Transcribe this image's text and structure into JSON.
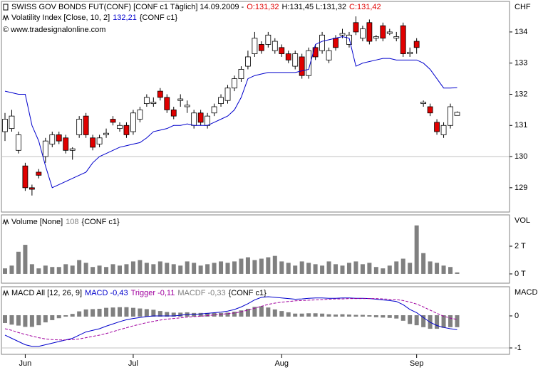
{
  "chart_data": [
    {
      "type": "candlestick",
      "header": [
        [
          {
            "text": "SWISS GOV BONDS FUT(CONF) [CONF c1  Täglich] 14.09.2009 -",
            "color": "#000000"
          },
          {
            "text": "O:131,32",
            "color": "#e00000"
          },
          {
            "text": "H:131,45 L:131,32",
            "color": "#000000"
          },
          {
            "text": "C:131,42",
            "color": "#e00000"
          }
        ],
        [
          {
            "text": "Volatility Index [Close, 10, 2]",
            "color": "#000000"
          },
          {
            "text": "132,21",
            "color": "#0000cc"
          },
          {
            "text": "{CONF c1}",
            "color": "#000000"
          }
        ],
        [
          {
            "text": "© www.tradesignalonline.com",
            "color": "#000000"
          }
        ]
      ],
      "axis_label": "CHF",
      "ylim": [
        128.22,
        134.98
      ],
      "yticks": [
        129,
        130,
        131,
        132,
        133,
        134
      ],
      "hlines": [
        130
      ],
      "up_color": "#ffffff",
      "down_color": "#e00000",
      "open": [
        130.8,
        130.9,
        130.2,
        129.7,
        129.0,
        129.5,
        130.0,
        130.4,
        130.7,
        130.6,
        130.2,
        130.7,
        131.3,
        130.6,
        130.4,
        130.7,
        131.2,
        130.9,
        131.0,
        130.8,
        131.2,
        131.7,
        131.7,
        132.1,
        131.9,
        131.5,
        131.8,
        131.6,
        131.0,
        131.4,
        131.0,
        131.4,
        131.7,
        131.8,
        132.2,
        132.5,
        132.9,
        133.3,
        133.6,
        133.6,
        133.4,
        133.5,
        133.3,
        132.9,
        133.2,
        132.6,
        133.5,
        133.4,
        133.1,
        133.8,
        133.9,
        133.6,
        134.3,
        133.8,
        134.3,
        133.8,
        134.2,
        133.95,
        133.8,
        134.2,
        133.3,
        133.7,
        131.7,
        131.6,
        131.1,
        130.7,
        131.0,
        131.32
      ],
      "close": [
        131.2,
        131.3,
        130.7,
        129.0,
        128.95,
        129.4,
        130.5,
        130.7,
        130.5,
        130.2,
        130.25,
        131.2,
        130.7,
        130.3,
        130.6,
        130.75,
        131.1,
        131.0,
        130.7,
        131.4,
        131.5,
        131.9,
        131.75,
        131.9,
        131.5,
        131.3,
        131.85,
        131.65,
        131.4,
        131.1,
        131.3,
        131.6,
        131.9,
        132.2,
        132.5,
        132.8,
        133.2,
        133.8,
        133.4,
        133.9,
        133.7,
        133.3,
        133.1,
        133.3,
        132.6,
        133.4,
        133.2,
        133.9,
        133.4,
        133.5,
        133.95,
        133.9,
        134.0,
        134.1,
        133.7,
        133.85,
        133.8,
        134.0,
        133.85,
        133.3,
        133.35,
        133.5,
        131.75,
        131.4,
        130.8,
        131.0,
        131.6,
        131.42
      ],
      "high": [
        131.4,
        131.5,
        130.8,
        129.8,
        129.1,
        129.6,
        130.6,
        130.8,
        130.8,
        130.7,
        130.3,
        131.3,
        131.4,
        130.7,
        130.7,
        130.9,
        131.3,
        131.1,
        131.1,
        131.5,
        131.6,
        132.0,
        131.9,
        132.2,
        132.0,
        131.6,
        132.0,
        131.8,
        131.5,
        131.5,
        131.4,
        131.7,
        132.0,
        132.3,
        132.6,
        132.9,
        133.4,
        134.0,
        133.7,
        134.0,
        133.8,
        133.6,
        133.4,
        133.4,
        133.3,
        133.5,
        133.6,
        134.0,
        133.5,
        133.9,
        134.1,
        134.0,
        134.5,
        134.2,
        134.4,
        133.9,
        134.3,
        134.1,
        134.0,
        134.3,
        133.5,
        133.8,
        131.8,
        131.7,
        131.2,
        131.1,
        131.7,
        131.45
      ],
      "low": [
        130.5,
        130.8,
        130.1,
        128.9,
        128.75,
        129.3,
        129.8,
        130.3,
        130.4,
        130.1,
        129.9,
        130.6,
        130.6,
        130.2,
        130.3,
        130.6,
        131.0,
        130.8,
        130.6,
        130.7,
        131.1,
        131.6,
        131.6,
        131.8,
        131.4,
        131.2,
        131.6,
        131.4,
        130.9,
        131.0,
        130.9,
        131.3,
        131.6,
        131.7,
        132.1,
        132.4,
        132.8,
        133.2,
        133.3,
        133.5,
        133.3,
        133.2,
        133.0,
        132.8,
        132.5,
        132.5,
        133.1,
        133.3,
        133.0,
        133.4,
        133.8,
        133.5,
        133.9,
        133.7,
        133.6,
        133.7,
        133.7,
        133.9,
        133.7,
        133.2,
        133.2,
        133.3,
        131.6,
        131.3,
        130.7,
        130.6,
        130.9,
        131.32
      ],
      "indicator": {
        "color": "#0000cc",
        "values": [
          132.1,
          132.05,
          132.0,
          132.0,
          131.0,
          130.5,
          129.7,
          129.0,
          129.1,
          129.2,
          129.3,
          129.4,
          129.5,
          129.8,
          130.0,
          130.1,
          130.2,
          130.3,
          130.35,
          130.4,
          130.45,
          130.6,
          130.8,
          130.85,
          130.9,
          131.0,
          131.0,
          131.05,
          131.0,
          131.0,
          131.0,
          131.1,
          131.2,
          131.3,
          131.5,
          131.9,
          132.5,
          132.6,
          132.65,
          132.7,
          132.7,
          132.7,
          132.7,
          132.7,
          132.75,
          132.8,
          133.6,
          133.7,
          133.75,
          133.8,
          133.85,
          133.8,
          132.9,
          133.0,
          133.05,
          133.1,
          133.15,
          133.15,
          133.1,
          133.1,
          133.1,
          133.1,
          133.0,
          132.8,
          132.5,
          132.2,
          132.2,
          132.21
        ]
      }
    },
    {
      "type": "bar",
      "header": [
        [
          {
            "text": "Volume [None]",
            "color": "#000000"
          },
          {
            "text": "108",
            "color": "#808080"
          },
          {
            "text": "{CONF c1}",
            "color": "#000000"
          }
        ]
      ],
      "axis_label": "VOL",
      "ylim": [
        -0.67,
        4.26
      ],
      "yticks": [
        {
          "value": 0,
          "label": "0 T"
        },
        {
          "value": 2,
          "label": "2 T"
        }
      ],
      "hlines": [],
      "color": "#808080",
      "values": [
        0.4,
        0.6,
        1.6,
        2.1,
        0.7,
        0.4,
        0.6,
        0.5,
        0.5,
        0.7,
        0.6,
        1.0,
        0.8,
        0.5,
        0.6,
        0.5,
        0.7,
        0.6,
        0.7,
        0.9,
        1.0,
        0.8,
        0.7,
        0.9,
        0.8,
        0.7,
        0.6,
        0.9,
        0.8,
        0.6,
        0.7,
        0.8,
        0.9,
        0.8,
        0.9,
        1.1,
        1.2,
        1.0,
        1.1,
        1.2,
        1.3,
        0.9,
        0.8,
        0.6,
        0.9,
        0.8,
        0.7,
        0.6,
        0.9,
        0.7,
        0.6,
        0.8,
        0.9,
        0.7,
        0.8,
        0.5,
        0.4,
        0.6,
        0.9,
        1.1,
        0.8,
        3.5,
        1.5,
        0.9,
        0.8,
        0.6,
        0.5,
        0.108
      ]
    },
    {
      "type": "macd",
      "header": [
        [
          {
            "text": "MACD All [12, 26, 9]",
            "color": "#000000"
          },
          {
            "text": "MACD -0,43",
            "color": "#0000cc"
          },
          {
            "text": "Trigger -0,11",
            "color": "#a0009f"
          },
          {
            "text": "MACDF -0,33",
            "color": "#808080"
          },
          {
            "text": "{CONF c1}",
            "color": "#000000"
          }
        ]
      ],
      "axis_label": "MACD",
      "ylim": [
        -1.2,
        0.91
      ],
      "yticks": [
        0,
        -1
      ],
      "hlines": [
        -1
      ],
      "categories": [
        null,
        null,
        null,
        "Jun",
        null,
        null,
        null,
        null,
        null,
        null,
        null,
        null,
        null,
        null,
        null,
        null,
        null,
        null,
        null,
        "Jul",
        null,
        null,
        null,
        null,
        null,
        null,
        null,
        null,
        null,
        null,
        null,
        null,
        null,
        null,
        null,
        null,
        null,
        null,
        null,
        null,
        null,
        "Aug",
        null,
        null,
        null,
        null,
        null,
        null,
        null,
        null,
        null,
        null,
        null,
        null,
        null,
        null,
        null,
        null,
        null,
        null,
        null,
        "Sep",
        null,
        null,
        null,
        null,
        null,
        null
      ],
      "series": [
        {
          "color": "#808080",
          "style": "histogram",
          "values": [
            -0.2,
            -0.25,
            -0.28,
            -0.32,
            -0.32,
            -0.27,
            -0.18,
            -0.11,
            -0.05,
            0.0,
            0.04,
            0.12,
            0.18,
            0.19,
            0.2,
            0.23,
            0.24,
            0.25,
            0.25,
            0.23,
            0.21,
            0.19,
            0.17,
            0.13,
            0.1,
            0.08,
            0.08,
            0.09,
            0.07,
            0.07,
            0.07,
            0.07,
            0.07,
            0.08,
            0.11,
            0.15,
            0.2,
            0.26,
            0.28,
            0.24,
            0.18,
            0.13,
            0.09,
            0.05,
            0.05,
            0.06,
            0.06,
            0.05,
            0.03,
            0.02,
            0.03,
            0.02,
            0.01,
            0.01,
            0.0,
            -0.02,
            -0.03,
            -0.04,
            -0.06,
            -0.13,
            -0.23,
            -0.27,
            -0.33,
            -0.38,
            -0.38,
            -0.35,
            -0.33,
            -0.33
          ]
        },
        {
          "color": "#0000cc",
          "style": "solid",
          "values": [
            -0.6,
            -0.7,
            -0.8,
            -0.9,
            -0.95,
            -0.95,
            -0.9,
            -0.85,
            -0.8,
            -0.75,
            -0.7,
            -0.6,
            -0.5,
            -0.45,
            -0.4,
            -0.32,
            -0.25,
            -0.18,
            -0.12,
            -0.08,
            -0.05,
            -0.02,
            0.0,
            0.0,
            0.0,
            0.0,
            0.02,
            0.05,
            0.05,
            0.06,
            0.08,
            0.1,
            0.12,
            0.15,
            0.2,
            0.28,
            0.38,
            0.5,
            0.58,
            0.6,
            0.58,
            0.56,
            0.54,
            0.52,
            0.53,
            0.55,
            0.56,
            0.56,
            0.55,
            0.55,
            0.56,
            0.56,
            0.55,
            0.55,
            0.54,
            0.52,
            0.5,
            0.48,
            0.45,
            0.35,
            0.2,
            0.1,
            -0.05,
            -0.2,
            -0.3,
            -0.36,
            -0.4,
            -0.43
          ]
        },
        {
          "color": "#a0009f",
          "style": "dashed",
          "values": [
            -0.4,
            -0.45,
            -0.52,
            -0.58,
            -0.63,
            -0.68,
            -0.72,
            -0.74,
            -0.75,
            -0.75,
            -0.74,
            -0.72,
            -0.68,
            -0.64,
            -0.6,
            -0.55,
            -0.49,
            -0.43,
            -0.37,
            -0.31,
            -0.26,
            -0.21,
            -0.17,
            -0.13,
            -0.1,
            -0.08,
            -0.06,
            -0.04,
            -0.02,
            -0.01,
            0.01,
            0.03,
            0.05,
            0.07,
            0.09,
            0.13,
            0.18,
            0.24,
            0.3,
            0.36,
            0.4,
            0.43,
            0.45,
            0.47,
            0.48,
            0.49,
            0.5,
            0.51,
            0.52,
            0.53,
            0.53,
            0.54,
            0.54,
            0.54,
            0.54,
            0.54,
            0.53,
            0.52,
            0.51,
            0.48,
            0.43,
            0.37,
            0.28,
            0.18,
            0.08,
            -0.01,
            -0.07,
            -0.11
          ]
        }
      ]
    }
  ]
}
